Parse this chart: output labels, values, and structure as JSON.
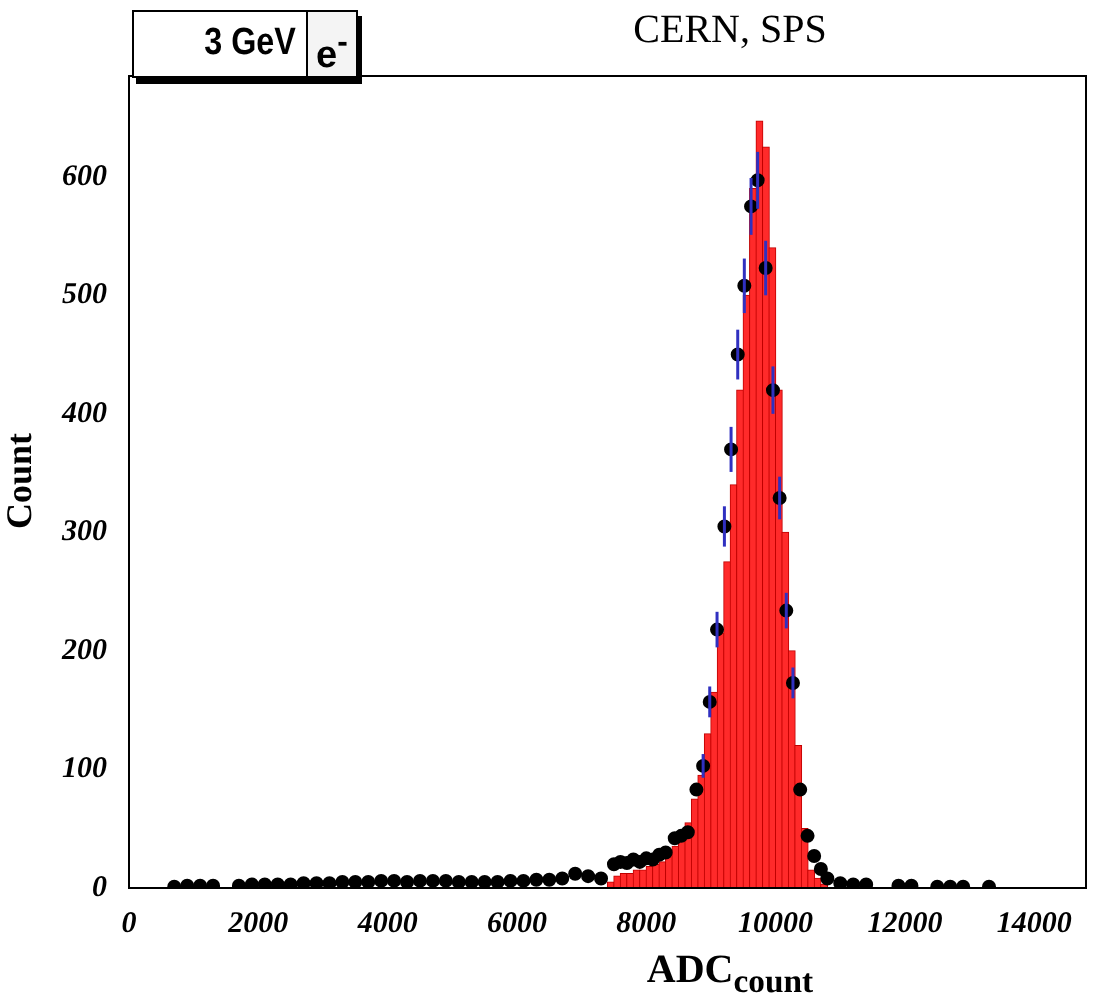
{
  "chart_data": {
    "type": "histogram",
    "title": "CERN, SPS",
    "xlabel": "ADC$_{count}$",
    "ylabel": "Count",
    "annotations": [
      "3 GeV",
      "e$^{-}$"
    ],
    "xlim": [
      0,
      14800
    ],
    "xticks": [
      0,
      2000,
      4000,
      6000,
      8000,
      10000,
      12000,
      14000
    ],
    "ylim": [
      0,
      685
    ],
    "yticks": [
      0,
      100,
      200,
      300,
      400,
      500,
      600
    ],
    "grid": false,
    "legend": false,
    "series": [
      {
        "color": "#ff2a2a",
        "bins": [
          7400,
          7500,
          7600,
          7700,
          7800,
          7900,
          8000,
          8100,
          8200,
          8300,
          8400,
          8500,
          8600,
          8700,
          8800,
          8900,
          9000,
          9100,
          9200,
          9300,
          9400,
          9500,
          9600,
          9700,
          9800,
          9900,
          10000,
          10100,
          10200,
          10300,
          10400,
          10500,
          10600,
          10700,
          10800
        ],
        "values": [
          5,
          10,
          12,
          12,
          15,
          15,
          18,
          20,
          22,
          28,
          35,
          40,
          55,
          75,
          95,
          130,
          165,
          215,
          275,
          340,
          420,
          500,
          590,
          647,
          625,
          540,
          420,
          300,
          200,
          120,
          50,
          15,
          8,
          3
        ]
      },
      {
        "type": "scatter",
        "color": "#000000",
        "marker": "circle",
        "x": [
          700,
          900,
          1100,
          1300,
          1700,
          1900,
          2100,
          2300,
          2500,
          2700,
          2900,
          3100,
          3300,
          3500,
          3700,
          3900,
          4100,
          4300,
          4500,
          4700,
          4900,
          5100,
          5300,
          5500,
          5700,
          5900,
          6100,
          6300,
          6500,
          6700,
          6900,
          7100,
          7300,
          7500,
          7600,
          7700,
          7800,
          7900,
          8000,
          8100,
          8200,
          8300,
          8440,
          8540,
          8642,
          8775,
          8879,
          8981,
          9094,
          9208,
          9311,
          9414,
          9516,
          9620,
          9722,
          9846,
          9959,
          10062,
          10165,
          10268,
          10380,
          10494,
          10596,
          10700,
          10800,
          11000,
          11200,
          11400,
          11900,
          12100,
          12500,
          12700,
          12900,
          13300
        ],
        "values": [
          1,
          2,
          2,
          2,
          2,
          3,
          3,
          3,
          3,
          4,
          4,
          4,
          5,
          5,
          5,
          6,
          6,
          5,
          6,
          6,
          6,
          5,
          5,
          5,
          5,
          6,
          6,
          7,
          7,
          8,
          12,
          10,
          8,
          20,
          22,
          21,
          24,
          22,
          25,
          24,
          28,
          30,
          42,
          44,
          47,
          83,
          103,
          157,
          218,
          305,
          370,
          450,
          508,
          575,
          597,
          523,
          420,
          329,
          234,
          173,
          83,
          44,
          27,
          16,
          8,
          4,
          3,
          3,
          2,
          2,
          1,
          1,
          1,
          1
        ],
        "errors": [
          null,
          null,
          null,
          null,
          null,
          null,
          null,
          null,
          null,
          null,
          null,
          null,
          null,
          null,
          null,
          null,
          null,
          null,
          null,
          null,
          null,
          null,
          null,
          null,
          null,
          null,
          null,
          null,
          null,
          null,
          null,
          null,
          null,
          null,
          null,
          null,
          null,
          null,
          null,
          null,
          null,
          null,
          null,
          null,
          null,
          null,
          10,
          13,
          15,
          17,
          19,
          21,
          23,
          24,
          24,
          23,
          20,
          18,
          15,
          13,
          null,
          null,
          null,
          null,
          null,
          null,
          null,
          null,
          null,
          null,
          null,
          null,
          null,
          null
        ]
      }
    ]
  }
}
